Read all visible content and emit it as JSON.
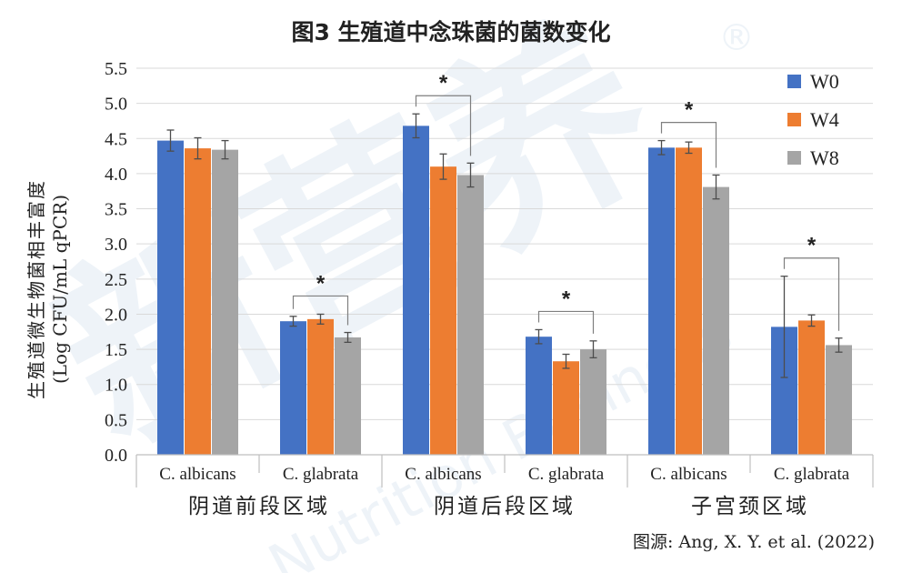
{
  "chart_data": {
    "type": "bar",
    "title": "图3 生殖道中念珠菌的菌数变化",
    "ylabel_line1": "生殖道微生物菌相丰富度",
    "ylabel_line2": "(Log CFU/mL qPCR)",
    "ylim": [
      0,
      5.5
    ],
    "yticks": [
      "0.0",
      "0.5",
      "1.0",
      "1.5",
      "2.0",
      "2.5",
      "3.0",
      "3.5",
      "4.0",
      "4.5",
      "5.0",
      "5.5"
    ],
    "categories": [
      "C. albicans",
      "C. glabrata",
      "C. albicans",
      "C. glabrata",
      "C. albicans",
      "C. glabrata"
    ],
    "groups": [
      {
        "label": "阴道前段区域",
        "span": [
          0,
          1
        ]
      },
      {
        "label": "阴道后段区域",
        "span": [
          2,
          3
        ]
      },
      {
        "label": "子宫颈区域",
        "span": [
          4,
          5
        ]
      }
    ],
    "series": [
      {
        "name": "W0",
        "color": "#4472C4",
        "values": [
          4.47,
          1.9,
          4.68,
          1.68,
          4.37,
          1.82
        ],
        "errors": [
          0.15,
          0.07,
          0.17,
          0.1,
          0.1,
          0.72
        ]
      },
      {
        "name": "W4",
        "color": "#ED7D31",
        "values": [
          4.36,
          1.93,
          4.1,
          1.33,
          4.37,
          1.91
        ],
        "errors": [
          0.15,
          0.07,
          0.18,
          0.1,
          0.08,
          0.08
        ]
      },
      {
        "name": "W8",
        "color": "#A5A5A5",
        "values": [
          4.34,
          1.67,
          3.98,
          1.5,
          3.81,
          1.56
        ],
        "errors": [
          0.13,
          0.07,
          0.17,
          0.12,
          0.17,
          0.1
        ]
      }
    ],
    "significance": [
      {
        "category": 1,
        "from_series": 0,
        "to_series": 2,
        "label": "*"
      },
      {
        "category": 2,
        "from_series": 0,
        "to_series": 2,
        "label": "*"
      },
      {
        "category": 3,
        "from_series": 0,
        "to_series": 2,
        "label": "*"
      },
      {
        "category": 4,
        "from_series": 0,
        "to_series": 2,
        "label": "*"
      },
      {
        "category": 5,
        "from_series": 0,
        "to_series": 2,
        "label": "*"
      }
    ],
    "legend_position": "top-right",
    "grid": true
  },
  "source": "图源: Ang, X. Y. et al. (2022)",
  "watermark_text": "新营养 Nutrition Business"
}
